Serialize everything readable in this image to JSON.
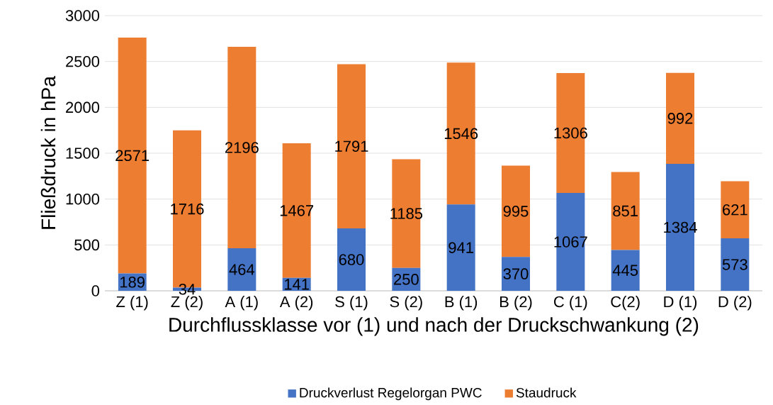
{
  "chart_data": {
    "type": "bar",
    "stacked": true,
    "xlabel": "Durchflussklasse vor (1) und nach der Druckschwankung (2)",
    "ylabel": "Fließdruck in hPa",
    "categories": [
      "Z (1)",
      "Z (2)",
      "A (1)",
      "A (2)",
      "S (1)",
      "S (2)",
      "B (1)",
      "B (2)",
      "C (1)",
      "C(2)",
      "D (1)",
      "D (2)"
    ],
    "series": [
      {
        "name": "Druckverlust Regelorgan PWC",
        "color": "#4472c4",
        "values": [
          189,
          34,
          464,
          141,
          680,
          250,
          941,
          370,
          1067,
          445,
          1384,
          573
        ]
      },
      {
        "name": "Staudruck",
        "color": "#ed7d31",
        "values": [
          2571,
          1716,
          2196,
          1467,
          1791,
          1185,
          1546,
          995,
          1306,
          851,
          992,
          621
        ]
      }
    ],
    "ylim": [
      0,
      3000
    ],
    "yticks": [
      0,
      500,
      1000,
      1500,
      2000,
      2500,
      3000
    ],
    "grid": "y",
    "legend": "bottom",
    "data_labels": true
  }
}
